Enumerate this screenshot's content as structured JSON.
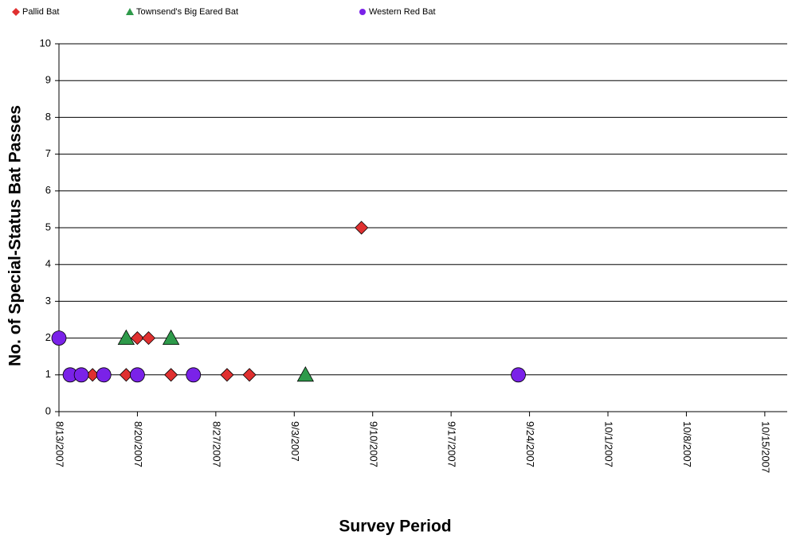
{
  "chart_data": {
    "type": "scatter",
    "y_label": "No. of Special-Status Bat Passes",
    "x_label": "Survey Period",
    "xlim": [
      "8/13/2007",
      "10/17/2007"
    ],
    "xticks": [
      "8/13/2007",
      "8/20/2007",
      "8/27/2007",
      "9/3/2007",
      "9/10/2007",
      "9/17/2007",
      "9/24/2007",
      "10/1/2007",
      "10/8/2007",
      "10/15/2007"
    ],
    "ylim": [
      0,
      10
    ],
    "yticks": [
      0,
      1,
      2,
      3,
      4,
      5,
      6,
      7,
      8,
      9,
      10
    ],
    "grid": true,
    "legend": "top",
    "series": [
      {
        "name": "Pallid Bat",
        "color": "#e03030",
        "marker": "diamond",
        "x": [
          "8/16/2007",
          "8/19/2007",
          "8/20/2007",
          "8/21/2007",
          "8/23/2007",
          "8/28/2007",
          "8/30/2007",
          "9/9/2007"
        ],
        "values": [
          1,
          1,
          2,
          2,
          1,
          1,
          1,
          5
        ]
      },
      {
        "name": "Townsend's Big Eared Bat",
        "color": "#2e9a4a",
        "marker": "triangle",
        "x": [
          "8/19/2007",
          "8/23/2007",
          "9/4/2007"
        ],
        "values": [
          2,
          2,
          1
        ]
      },
      {
        "name": "Western Red Bat",
        "color": "#7a22e8",
        "marker": "circle",
        "x": [
          "8/13/2007",
          "8/14/2007",
          "8/15/2007",
          "8/17/2007",
          "8/20/2007",
          "8/25/2007",
          "9/23/2007"
        ],
        "values": [
          2,
          1,
          1,
          1,
          1,
          1,
          1
        ]
      }
    ]
  }
}
